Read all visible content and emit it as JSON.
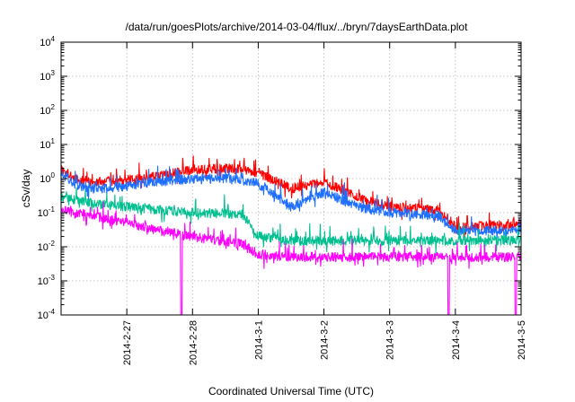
{
  "chart_data": {
    "type": "line",
    "title": "/data/run/goesPlots/archive/2014-03-04/flux/../bryn/7daysEarthData.plot",
    "xlabel": "Coordinated Universal Time (UTC)",
    "ylabel": "cSv/day",
    "yscale": "log",
    "ylim": [
      0.0001,
      10000
    ],
    "y_ticks": [
      {
        "value": 0.0001,
        "base": "10",
        "exp": "-4"
      },
      {
        "value": 0.001,
        "base": "10",
        "exp": "-3"
      },
      {
        "value": 0.01,
        "base": "10",
        "exp": "-2"
      },
      {
        "value": 0.1,
        "base": "10",
        "exp": "-1"
      },
      {
        "value": 1,
        "base": "10",
        "exp": "0"
      },
      {
        "value": 10,
        "base": "10",
        "exp": "1"
      },
      {
        "value": 100,
        "base": "10",
        "exp": "2"
      },
      {
        "value": 1000,
        "base": "10",
        "exp": "3"
      },
      {
        "value": 10000,
        "base": "10",
        "exp": "4"
      }
    ],
    "xlim": [
      "2014-02-26",
      "2014-03-05"
    ],
    "x_ticks": [
      "2014-2-27",
      "2014-2-28",
      "2014-3-1",
      "2014-3-2",
      "2014-3-3",
      "2014-3-4",
      "2014-3-5"
    ],
    "grid": true,
    "series": [
      {
        "color": "#ff0000",
        "x": [
          "2014-02-26",
          "2014-02-26 06:00",
          "2014-02-26 12:00",
          "2014-02-27",
          "2014-02-27 12:00",
          "2014-02-28",
          "2014-02-28 12:00",
          "2014-02-28 18:00",
          "2014-03-01",
          "2014-03-01 12:00",
          "2014-03-02",
          "2014-03-02 12:00",
          "2014-03-03",
          "2014-03-03 18:00",
          "2014-03-04",
          "2014-03-04 12:00",
          "2014-03-05"
        ],
        "y": [
          1.8,
          0.9,
          0.8,
          0.9,
          1.2,
          1.8,
          2.0,
          1.8,
          1.5,
          0.5,
          0.8,
          0.3,
          0.15,
          0.12,
          0.04,
          0.04,
          0.05
        ]
      },
      {
        "color": "#1f6fff",
        "x": [
          "2014-02-26",
          "2014-02-26 06:00",
          "2014-02-26 12:00",
          "2014-02-27",
          "2014-02-27 12:00",
          "2014-02-28",
          "2014-02-28 12:00",
          "2014-02-28 18:00",
          "2014-03-01",
          "2014-03-01 12:00",
          "2014-03-02",
          "2014-03-02 12:00",
          "2014-03-03",
          "2014-03-03 18:00",
          "2014-03-04",
          "2014-03-04 12:00",
          "2014-03-05"
        ],
        "y": [
          1.5,
          0.6,
          0.5,
          0.6,
          0.8,
          1.0,
          1.0,
          0.9,
          0.7,
          0.15,
          0.4,
          0.15,
          0.1,
          0.08,
          0.03,
          0.03,
          0.03
        ]
      },
      {
        "color": "#00c090",
        "x": [
          "2014-02-26",
          "2014-02-26 12:00",
          "2014-02-27",
          "2014-02-27 12:00",
          "2014-02-28",
          "2014-02-28 18:00",
          "2014-03-01",
          "2014-03-01 12:00",
          "2014-03-02",
          "2014-03-02 12:00",
          "2014-03-03",
          "2014-03-03 18:00",
          "2014-03-04",
          "2014-03-04 12:00",
          "2014-03-05"
        ],
        "y": [
          0.28,
          0.18,
          0.15,
          0.12,
          0.1,
          0.09,
          0.02,
          0.015,
          0.015,
          0.015,
          0.015,
          0.015,
          0.015,
          0.015,
          0.015
        ]
      },
      {
        "color": "#ff00ff",
        "x": [
          "2014-02-26",
          "2014-02-26 12:00",
          "2014-02-27",
          "2014-02-27 12:00",
          "2014-02-28",
          "2014-02-28 18:00",
          "2014-03-01",
          "2014-03-01 12:00",
          "2014-03-02",
          "2014-03-02 12:00",
          "2014-03-03",
          "2014-03-03 18:00",
          "2014-03-04",
          "2014-03-04 12:00",
          "2014-03-05"
        ],
        "y": [
          0.12,
          0.08,
          0.05,
          0.03,
          0.02,
          0.012,
          0.006,
          0.005,
          0.005,
          0.005,
          0.005,
          0.005,
          0.005,
          0.005,
          0.005
        ],
        "drops_to_min_at": [
          "2014-02-27 20:00",
          "2014-03-03 21:30",
          "2014-03-04 22:00"
        ]
      }
    ]
  }
}
